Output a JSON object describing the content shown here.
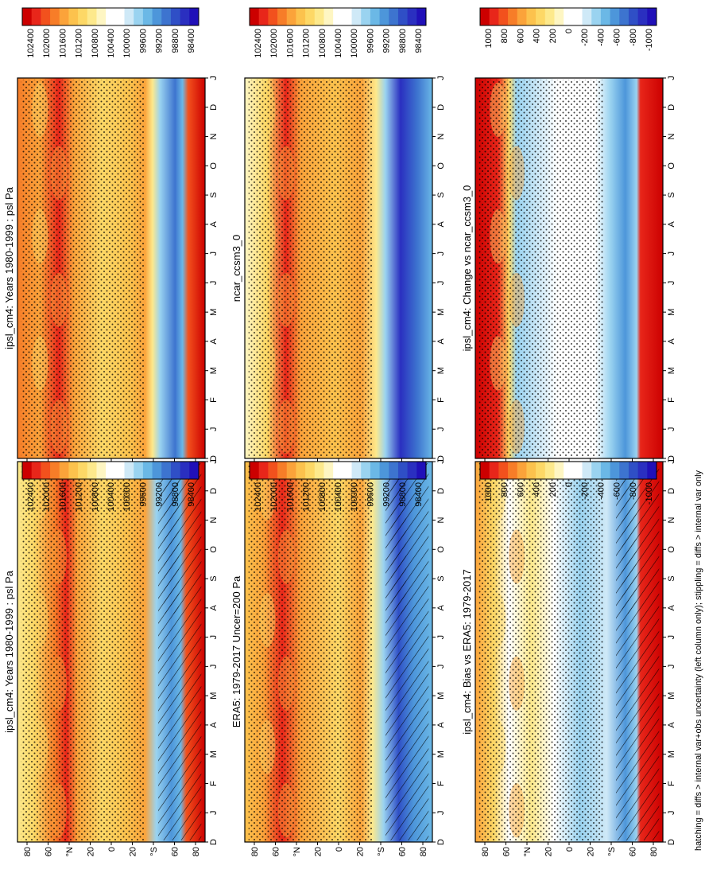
{
  "footer_note": "hatching = diffs > internal var+obs uncertainty (left column only); stippling = diffs > internal var only",
  "x_axis": {
    "type": "month",
    "months": [
      "D",
      "J",
      "F",
      "M",
      "A",
      "M",
      "J",
      "J",
      "A",
      "S",
      "O",
      "N",
      "D",
      "J"
    ]
  },
  "y_axis": {
    "type": "latitude",
    "range": [
      -90,
      90
    ],
    "tick_labels": [
      "80",
      "60",
      "°N",
      "20",
      "0",
      "20",
      "°S",
      "60",
      "80"
    ]
  },
  "colorbars": {
    "absolute": {
      "labels": [
        "102400",
        "102000",
        "101600",
        "101200",
        "100800",
        "100400",
        "100000",
        "99600",
        "99200",
        "98800",
        "98400"
      ],
      "colors": [
        "#cc0000",
        "#e8261a",
        "#f2511d",
        "#f77d28",
        "#fba33a",
        "#fcc24d",
        "#fdd866",
        "#fde98c",
        "#fef6c3",
        "#ffffff",
        "#ffffff",
        "#cfe9f7",
        "#9ad3f0",
        "#6bb8e6",
        "#4d96da",
        "#3d74cf",
        "#2f4fc6",
        "#2a2fc0",
        "#2010b8"
      ]
    },
    "difference": {
      "labels": [
        "1000",
        "800",
        "600",
        "400",
        "200",
        "0",
        "-200",
        "-400",
        "-600",
        "-800",
        "-1000"
      ],
      "colors": [
        "#cc0000",
        "#e8261a",
        "#f2511d",
        "#f77d28",
        "#fba33a",
        "#fcc24d",
        "#fdd866",
        "#fde98c",
        "#fef6c3",
        "#ffffff",
        "#ffffff",
        "#cfe9f7",
        "#9ad3f0",
        "#6bb8e6",
        "#4d96da",
        "#3d74cf",
        "#2f4fc6",
        "#2a2fc0",
        "#2010b8"
      ]
    }
  },
  "chart_data": [
    {
      "type": "heatmap",
      "title": "ipsl_cm4: Years 1980-1999 : psl Pa",
      "colorbar": "absolute",
      "hatching": "yes",
      "stippling": "yes",
      "panel_position": "top-left"
    },
    {
      "type": "heatmap",
      "title": "ipsl_cm4: Years 1980-1999 : psl Pa",
      "colorbar": "absolute",
      "hatching": "no",
      "stippling": "yes",
      "panel_position": "top-right"
    },
    {
      "type": "heatmap",
      "title": "ERA5: 1979-2017 Uncer=200 Pa",
      "colorbar": "absolute",
      "hatching": "yes",
      "stippling": "yes",
      "panel_position": "middle-left"
    },
    {
      "type": "heatmap",
      "title": "ncar_ccsm3_0",
      "colorbar": "absolute",
      "hatching": "no",
      "stippling": "yes",
      "panel_position": "middle-right"
    },
    {
      "type": "heatmap",
      "title": "ipsl_cm4: Bias vs ERA5: 1979-2017",
      "colorbar": "difference",
      "hatching": "yes",
      "stippling": "yes",
      "panel_position": "bottom-left"
    },
    {
      "type": "heatmap",
      "title": "ipsl_cm4: Change vs ncar_ccsm3_0",
      "colorbar": "difference",
      "hatching": "no",
      "stippling": "yes",
      "panel_position": "bottom-right"
    }
  ]
}
